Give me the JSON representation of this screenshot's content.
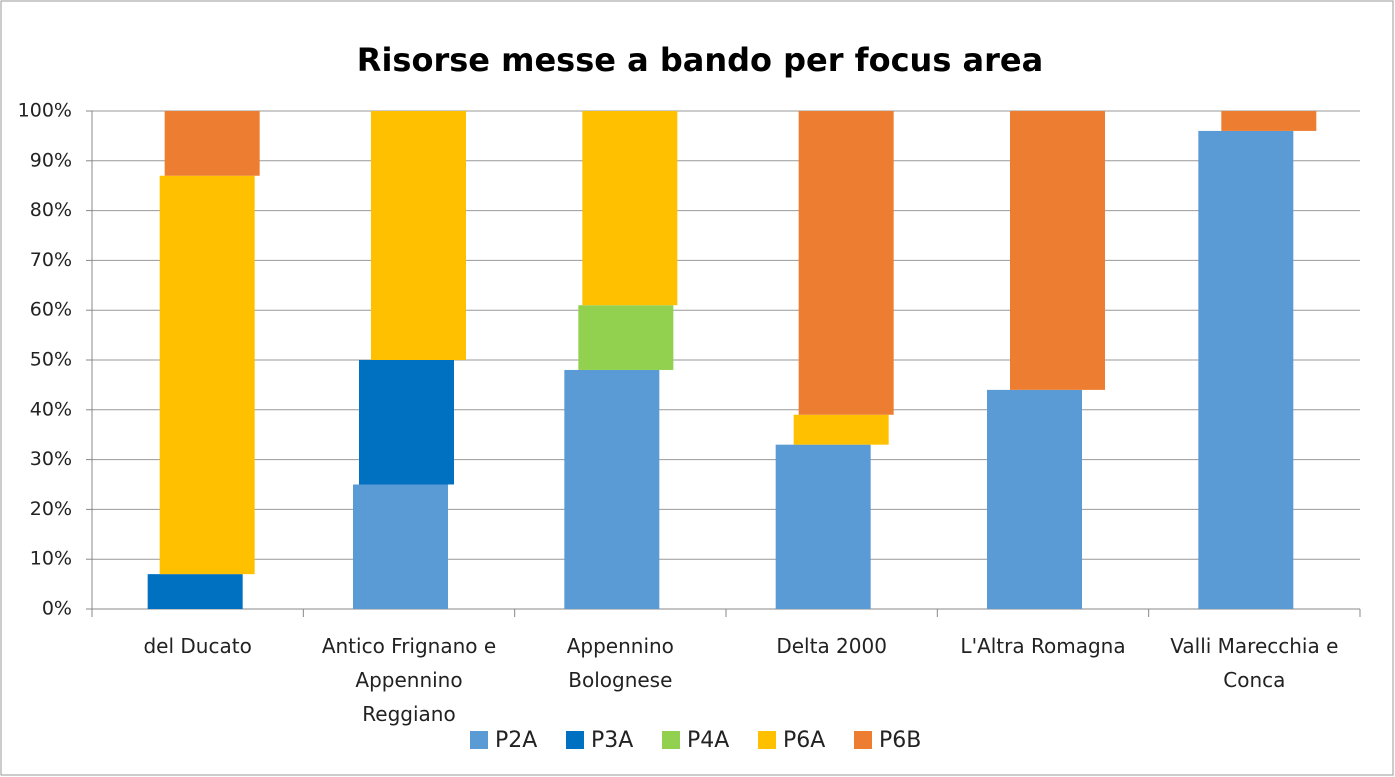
{
  "chart_data": {
    "type": "stacked_bar",
    "title": "Risorse messe a bando per focus area",
    "categories": [
      "del Ducato",
      "Antico Frignano e Appennino Reggiano",
      "Appennino Bolognese",
      "Delta 2000",
      "L'Altra Romagna",
      "Valli Marecchia e Conca"
    ],
    "series": [
      {
        "name": "P2A",
        "color": "#5b9bd5",
        "values": [
          0,
          25,
          48,
          33,
          44,
          96
        ]
      },
      {
        "name": "P3A",
        "color": "#0070c0",
        "values": [
          7,
          25,
          0,
          0,
          0,
          0
        ]
      },
      {
        "name": "P4A",
        "color": "#92d050",
        "values": [
          0,
          0,
          13,
          0,
          0,
          0
        ]
      },
      {
        "name": "P6A",
        "color": "#ffc000",
        "values": [
          80,
          50,
          39,
          6,
          0,
          0
        ]
      },
      {
        "name": "P6B",
        "color": "#ed7d31",
        "values": [
          13,
          0,
          0,
          61,
          56,
          4
        ]
      }
    ],
    "ylim": [
      0,
      100
    ],
    "yticks": [
      {
        "value": 0,
        "label": "0%"
      },
      {
        "value": 10,
        "label": "10%"
      },
      {
        "value": 20,
        "label": "20%"
      },
      {
        "value": 30,
        "label": "30%"
      },
      {
        "value": 40,
        "label": "40%"
      },
      {
        "value": 50,
        "label": "50%"
      },
      {
        "value": 60,
        "label": "60%"
      },
      {
        "value": 70,
        "label": "70%"
      },
      {
        "value": 80,
        "label": "80%"
      },
      {
        "value": 90,
        "label": "90%"
      },
      {
        "value": 100,
        "label": "100%"
      }
    ],
    "grid": true,
    "legend": "bottom"
  }
}
